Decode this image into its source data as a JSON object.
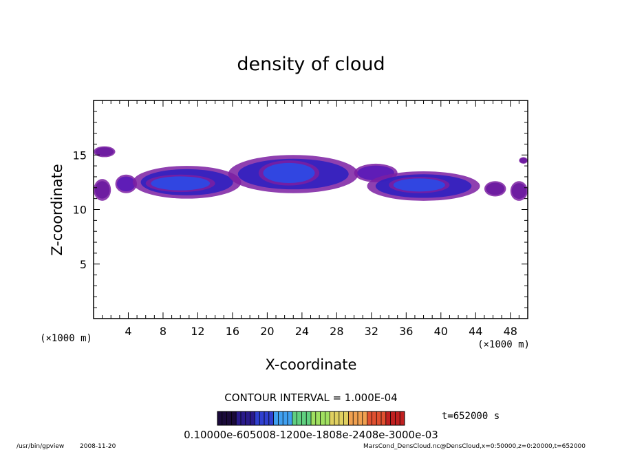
{
  "chart_data": {
    "type": "heatmap",
    "title": "density of cloud",
    "xlabel": "X-coordinate",
    "ylabel": "Z-coordinate",
    "x_unit": "(×1000 m)",
    "y_unit": "(×1000 m)",
    "xlim": [
      0,
      50
    ],
    "ylim": [
      0,
      20
    ],
    "x_ticks": [
      4,
      8,
      12,
      16,
      20,
      24,
      28,
      32,
      36,
      40,
      44,
      48
    ],
    "y_ticks": [
      5,
      10,
      15
    ],
    "grid": false,
    "contour_interval": "CONTOUR INTERVAL = 1.000E-04",
    "time_label": "t=652000 s",
    "colorbar_label": "0.10000e-605008-1200e-1808e-2408e-3000e-03",
    "colorbar_colors": [
      "#1a0a3a",
      "#2a1a8a",
      "#3040d0",
      "#40a0f0",
      "#60d080",
      "#a0e060",
      "#e0d060",
      "#f0a050",
      "#e05030",
      "#c02020"
    ],
    "cloud_regions": [
      {
        "x": [
          0,
          2
        ],
        "z": [
          10.8,
          12.8
        ],
        "level": 0.15
      },
      {
        "x": [
          0,
          2.5
        ],
        "z": [
          14.8,
          15.8
        ],
        "level": 0.2
      },
      {
        "x": [
          2.5,
          5
        ],
        "z": [
          11.5,
          13.2
        ],
        "level": 0.25
      },
      {
        "x": [
          4.5,
          17
        ],
        "z": [
          11.0,
          14.0
        ],
        "level": 0.5
      },
      {
        "x": [
          6,
          14
        ],
        "z": [
          11.6,
          13.2
        ],
        "level": 0.8
      },
      {
        "x": [
          15.5,
          30.5
        ],
        "z": [
          11.5,
          15.0
        ],
        "level": 0.55
      },
      {
        "x": [
          19,
          26
        ],
        "z": [
          12.2,
          14.5
        ],
        "level": 0.85
      },
      {
        "x": [
          30,
          35
        ],
        "z": [
          12.5,
          14.2
        ],
        "level": 0.4
      },
      {
        "x": [
          31.5,
          44.5
        ],
        "z": [
          10.8,
          13.5
        ],
        "level": 0.5
      },
      {
        "x": [
          34,
          41
        ],
        "z": [
          11.5,
          13.0
        ],
        "level": 0.8
      },
      {
        "x": [
          45,
          47.5
        ],
        "z": [
          11.2,
          12.6
        ],
        "level": 0.15
      },
      {
        "x": [
          48,
          50
        ],
        "z": [
          10.8,
          12.6
        ],
        "level": 0.2
      },
      {
        "x": [
          49,
          50
        ],
        "z": [
          14.2,
          14.8
        ],
        "level": 0.2
      }
    ]
  },
  "footer": {
    "program": "/usr/bin/gpview",
    "date": "2008-11-20",
    "source": "MarsCond_DensCloud.nc@DensCloud,x=0:50000,z=0:20000,t=652000"
  }
}
